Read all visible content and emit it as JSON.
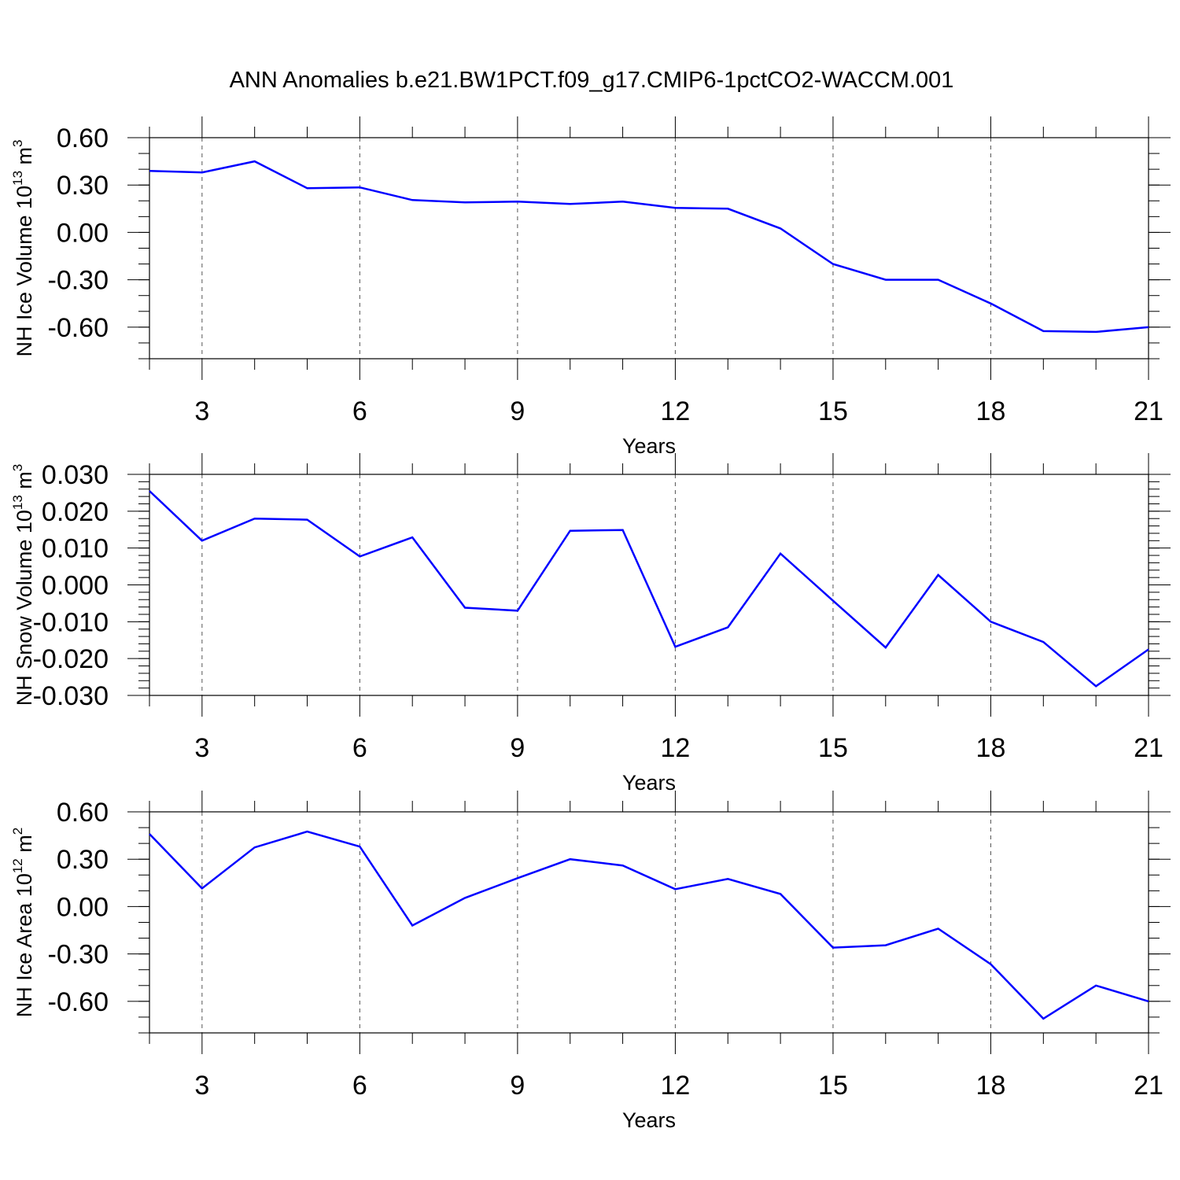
{
  "title": "ANN Anomalies b.e21.BW1PCT.f09_g17.CMIP6-1pctCO2-WACCM.001",
  "chart_data": [
    {
      "type": "line",
      "xlabel": "Years",
      "ylabel": {
        "text": "NH Ice Volume 10",
        "exp": "13",
        "unit": " m",
        "power": "3"
      },
      "xlim": [
        2,
        21
      ],
      "ylim": [
        -0.8,
        0.6
      ],
      "xticks": [
        3,
        6,
        9,
        12,
        15,
        18,
        21
      ],
      "xtick_labels": [
        "3",
        "6",
        "9",
        "12",
        "15",
        "18",
        "21"
      ],
      "yticks": [
        0.6,
        0.3,
        0.0,
        -0.3,
        -0.6
      ],
      "ytick_labels": [
        "0.60",
        "0.30",
        "0.00",
        "-0.30",
        "-0.60"
      ],
      "y_minor_step": 0.1,
      "grid": "vertical dashed at major x ticks",
      "color": "#0000ff",
      "x": [
        2,
        3,
        4,
        5,
        6,
        7,
        8,
        9,
        10,
        11,
        12,
        13,
        14,
        15,
        16,
        17,
        18,
        19,
        20,
        21
      ],
      "y": [
        0.39,
        0.38,
        0.45,
        0.28,
        0.285,
        0.205,
        0.19,
        0.195,
        0.18,
        0.195,
        0.155,
        0.15,
        0.025,
        -0.2,
        -0.3,
        -0.3,
        -0.45,
        -0.625,
        -0.63,
        -0.6
      ]
    },
    {
      "type": "line",
      "xlabel": "Years",
      "ylabel": {
        "text": "NH Snow Volume 10",
        "exp": "13",
        "unit": " m",
        "power": "3"
      },
      "xlim": [
        2,
        21
      ],
      "ylim": [
        -0.03,
        0.03
      ],
      "xticks": [
        3,
        6,
        9,
        12,
        15,
        18,
        21
      ],
      "xtick_labels": [
        "3",
        "6",
        "9",
        "12",
        "15",
        "18",
        "21"
      ],
      "yticks": [
        0.03,
        0.02,
        0.01,
        0.0,
        -0.01,
        -0.02,
        -0.03
      ],
      "ytick_labels": [
        "0.030",
        "0.020",
        "0.010",
        "0.000",
        "-0.010",
        "-0.020",
        "-0.030"
      ],
      "y_minor_step": 0.002,
      "grid": "vertical dashed at major x ticks",
      "color": "#0000ff",
      "x": [
        2,
        3,
        4,
        5,
        6,
        7,
        8,
        9,
        10,
        11,
        12,
        13,
        14,
        15,
        16,
        17,
        18,
        19,
        20,
        21
      ],
      "y": [
        0.0255,
        0.012,
        0.018,
        0.0177,
        0.0077,
        0.0129,
        -0.0062,
        -0.007,
        0.0147,
        0.0149,
        -0.0168,
        -0.0115,
        0.0085,
        -0.0043,
        -0.017,
        0.0027,
        -0.01,
        -0.0155,
        -0.0275,
        -0.0175
      ]
    },
    {
      "type": "line",
      "xlabel": "Years",
      "ylabel": {
        "text": "NH Ice Area 10",
        "exp": "12",
        "unit": " m",
        "power": "2"
      },
      "xlim": [
        2,
        21
      ],
      "ylim": [
        -0.8,
        0.6
      ],
      "xticks": [
        3,
        6,
        9,
        12,
        15,
        18,
        21
      ],
      "xtick_labels": [
        "3",
        "6",
        "9",
        "12",
        "15",
        "18",
        "21"
      ],
      "yticks": [
        0.6,
        0.3,
        0.0,
        -0.3,
        -0.6
      ],
      "ytick_labels": [
        "0.60",
        "0.30",
        "0.00",
        "-0.30",
        "-0.60"
      ],
      "y_minor_step": 0.1,
      "grid": "vertical dashed at major x ticks",
      "color": "#0000ff",
      "x": [
        2,
        3,
        4,
        5,
        6,
        7,
        8,
        9,
        10,
        11,
        12,
        13,
        14,
        15,
        16,
        17,
        18,
        19,
        20,
        21
      ],
      "y": [
        0.46,
        0.115,
        0.375,
        0.475,
        0.38,
        -0.12,
        0.055,
        0.18,
        0.3,
        0.26,
        0.11,
        0.175,
        0.08,
        -0.26,
        -0.245,
        -0.14,
        -0.365,
        -0.71,
        -0.5,
        -0.6
      ]
    }
  ]
}
